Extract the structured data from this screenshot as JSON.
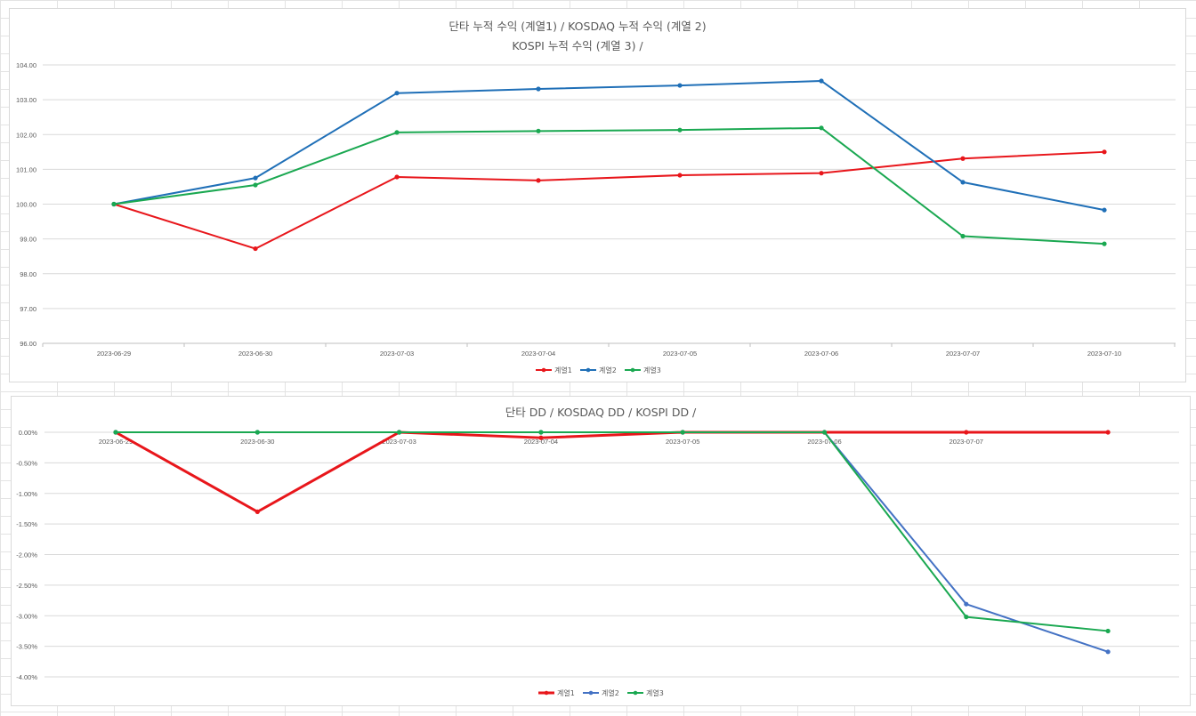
{
  "chart_data": [
    {
      "type": "line",
      "title_lines": [
        "단타 누적 수익 (계열1) /  KOSDAQ 누적 수익 (계열 2)",
        "KOSPI 누적 수익 (계열 3) /"
      ],
      "categories": [
        "2023-06-29",
        "2023-06-30",
        "2023-07-03",
        "2023-07-04",
        "2023-07-05",
        "2023-07-06",
        "2023-07-07",
        "2023-07-10"
      ],
      "ylim": [
        96,
        104
      ],
      "yticks": [
        "96.00",
        "97.00",
        "98.00",
        "99.00",
        "100.00",
        "101.00",
        "102.00",
        "103.00",
        "104.00"
      ],
      "grid": true,
      "legend_position": "bottom",
      "series": [
        {
          "name": "계열1",
          "color": "#e8161b",
          "values": [
            100.0,
            98.72,
            100.78,
            100.68,
            100.83,
            100.89,
            101.31,
            101.5
          ]
        },
        {
          "name": "계열2",
          "color": "#1f6fb7",
          "values": [
            100.0,
            100.75,
            103.19,
            103.31,
            103.41,
            103.54,
            100.63,
            99.83
          ]
        },
        {
          "name": "계열3",
          "color": "#1aa851",
          "values": [
            100.0,
            100.55,
            102.06,
            102.1,
            102.13,
            102.19,
            99.08,
            98.86
          ]
        }
      ]
    },
    {
      "type": "line",
      "title_lines": [
        "단타 DD / KOSDAQ DD / KOSPI DD /"
      ],
      "categories": [
        "2023-06-29",
        "2023-06-30",
        "2023-07-03",
        "2023-07-04",
        "2023-07-05",
        "2023-07-06",
        "2023-07-07",
        ""
      ],
      "ylim": [
        -4.0,
        0.0
      ],
      "yticks": [
        "-4.00%",
        "-3.50%",
        "-3.00%",
        "-2.50%",
        "-2.00%",
        "-1.50%",
        "-1.00%",
        "-0.50%",
        "0.00%"
      ],
      "grid": true,
      "legend_position": "bottom",
      "series": [
        {
          "name": "계열1",
          "color": "#e8161b",
          "values": [
            0.0,
            -1.3,
            0.0,
            -0.09,
            0.0,
            0.0,
            0.0,
            0.0
          ]
        },
        {
          "name": "계열2",
          "color": "#4472c4",
          "values": [
            0.0,
            0.0,
            0.0,
            0.0,
            0.0,
            0.0,
            -2.81,
            -3.59
          ]
        },
        {
          "name": "계열3",
          "color": "#1aa851",
          "values": [
            0.0,
            0.0,
            0.0,
            0.0,
            0.0,
            0.0,
            -3.02,
            -3.25
          ]
        }
      ]
    }
  ]
}
